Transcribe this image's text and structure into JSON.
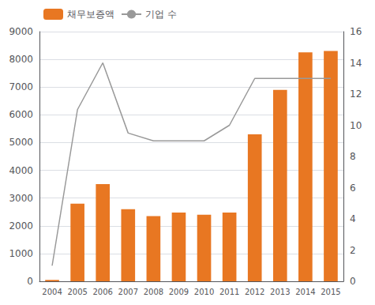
{
  "chart_data": {
    "type": "bar",
    "categories": [
      "2004",
      "2005",
      "2006",
      "2007",
      "2008",
      "2009",
      "2010",
      "2011",
      "2012",
      "2013",
      "2014",
      "2015"
    ],
    "series": [
      {
        "name": "채무보증액",
        "type": "bar",
        "color": "#E87722",
        "values": [
          50,
          2800,
          3500,
          2600,
          2350,
          2480,
          2400,
          2480,
          5300,
          6900,
          8250,
          8300
        ]
      },
      {
        "name": "기업 수",
        "type": "line",
        "color": "#999999",
        "axis": "y2",
        "values": [
          1,
          11,
          14,
          9.5,
          9,
          9,
          9,
          10,
          13,
          13,
          13,
          13
        ]
      }
    ],
    "ylim": [
      0,
      9000
    ],
    "yticks": [
      0,
      1000,
      2000,
      3000,
      4000,
      5000,
      6000,
      7000,
      8000,
      9000
    ],
    "y2lim": [
      0,
      16
    ],
    "y2ticks": [
      0,
      2,
      4,
      6,
      8,
      10,
      12,
      14,
      16
    ],
    "grid": true,
    "legend": "upper left"
  }
}
